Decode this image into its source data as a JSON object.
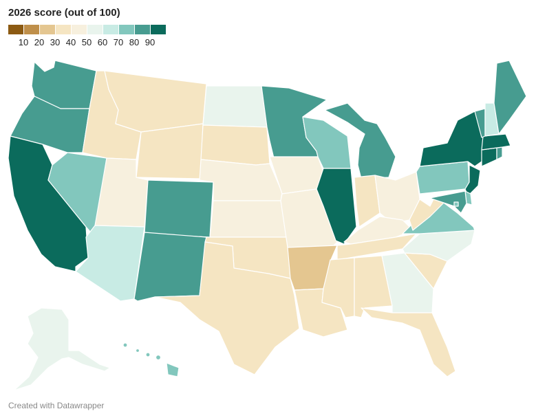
{
  "legend": {
    "title": "2026 score (out of 100)",
    "bins": [
      {
        "color": "#8c5a12",
        "label": "10"
      },
      {
        "color": "#bf8f4a",
        "label": "20"
      },
      {
        "color": "#e4c690",
        "label": "30"
      },
      {
        "color": "#f5e5c2",
        "label": "40"
      },
      {
        "color": "#f7f0de",
        "label": "50"
      },
      {
        "color": "#e9f4ed",
        "label": "60"
      },
      {
        "color": "#c8ebe4",
        "label": "70"
      },
      {
        "color": "#82c7bd",
        "label": "80"
      },
      {
        "color": "#479c90",
        "label": "90"
      },
      {
        "color": "#0b6b5c"
      }
    ]
  },
  "states": {
    "WA": "#479c90",
    "OR": "#479c90",
    "CA": "#0b6b5c",
    "NV": "#82c7bd",
    "ID": "#f5e5c2",
    "MT": "#f5e5c2",
    "WY": "#f5e5c2",
    "UT": "#f7f0de",
    "AZ": "#c8ebe4",
    "CO": "#479c90",
    "NM": "#479c90",
    "ND": "#e9f4ed",
    "SD": "#f5e5c2",
    "NE": "#f7f0de",
    "KS": "#f7f0de",
    "OK": "#f5e5c2",
    "TX": "#f5e5c2",
    "MN": "#479c90",
    "IA": "#f7f0de",
    "MO": "#f7f0de",
    "AR": "#e4c690",
    "LA": "#f5e5c2",
    "WI": "#82c7bd",
    "IL": "#0b6b5c",
    "MI": "#479c90",
    "IN": "#f5e5c2",
    "OH": "#f7f0de",
    "KY": "#f7f0de",
    "TN": "#f5e5c2",
    "MS": "#f5e5c2",
    "AL": "#f5e5c2",
    "GA": "#e9f4ed",
    "FL": "#f5e5c2",
    "SC": "#f5e5c2",
    "NC": "#e9f4ed",
    "VA": "#82c7bd",
    "WV": "#f5e5c2",
    "PA": "#82c7bd",
    "NY": "#0b6b5c",
    "VT": "#479c90",
    "NH": "#c8ebe4",
    "ME": "#479c90",
    "MA": "#0b6b5c",
    "CT": "#0b6b5c",
    "RI": "#479c90",
    "NJ": "#0b6b5c",
    "DE": "#82c7bd",
    "MD": "#479c90",
    "DC": "#82c7bd",
    "AK": "#e9f4ed",
    "HI": "#82c7bd"
  },
  "footer": "Created with Datawrapper"
}
